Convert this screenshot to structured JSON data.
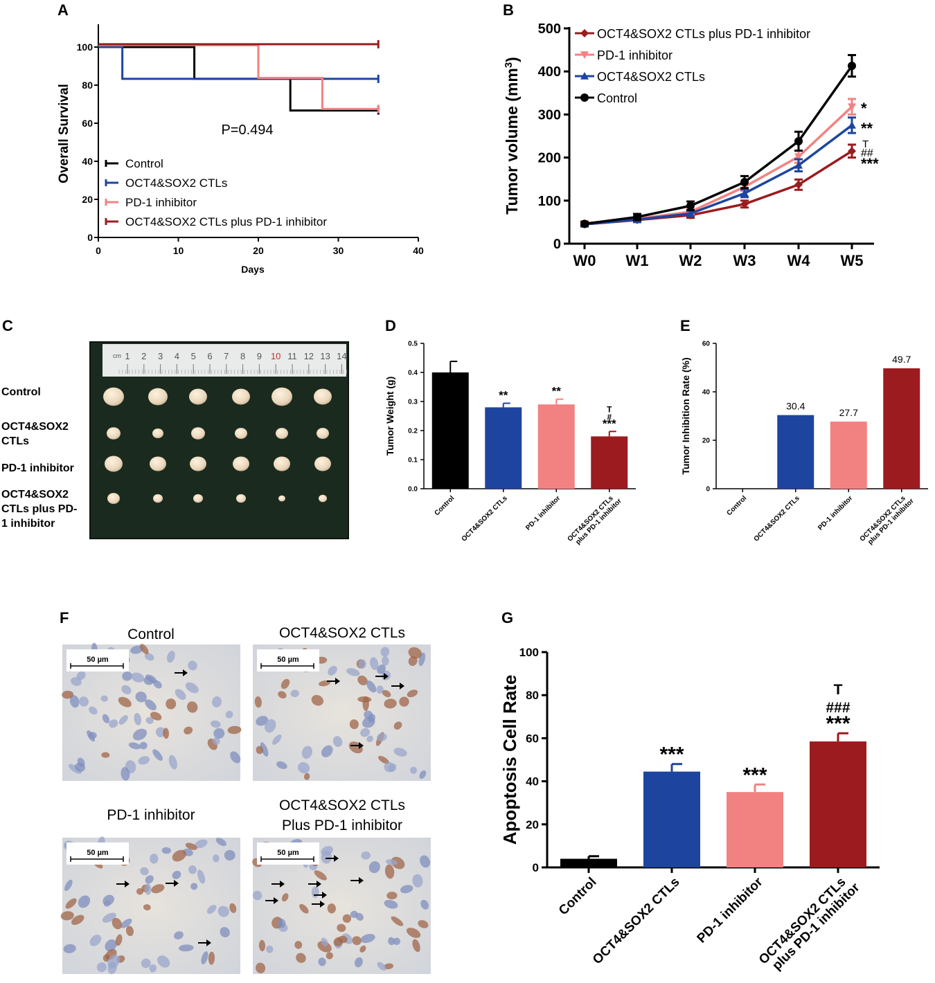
{
  "colors": {
    "control": "#000000",
    "oct": "#1d45a0",
    "pd1": "#f28282",
    "combo": "#9b1b1f"
  },
  "panel_labels": [
    "A",
    "B",
    "C",
    "D",
    "E",
    "F",
    "G"
  ],
  "chart_data": [
    {
      "id": "A",
      "type": "line",
      "subtype": "step",
      "title": "",
      "xlabel": "Days",
      "ylabel": "Overall Survival",
      "xlim": [
        0,
        40
      ],
      "ylim": [
        0,
        100
      ],
      "xticks": [
        0,
        10,
        20,
        30,
        40
      ],
      "yticks": [
        0,
        20,
        40,
        60,
        80,
        100
      ],
      "annotation": "P=0.494",
      "legend_position": "bottom-left",
      "series": [
        {
          "name": "Control",
          "color_key": "control",
          "x": [
            0,
            12,
            24,
            35
          ],
          "y": [
            100,
            83.3,
            66.7,
            66.7
          ]
        },
        {
          "name": "OCT4&SOX2 CTLs",
          "color_key": "oct",
          "x": [
            0,
            3,
            35
          ],
          "y": [
            100,
            83.3,
            83.3
          ]
        },
        {
          "name": "PD-1 inhibitor",
          "color_key": "pd1",
          "x": [
            0,
            20,
            28,
            35
          ],
          "y": [
            101,
            83.8,
            67.5,
            67.5
          ]
        },
        {
          "name": "OCT4&SOX2 CTLs plus PD-1 inhibitor",
          "color_key": "combo",
          "x": [
            0,
            35
          ],
          "y": [
            101.5,
            101.5
          ]
        }
      ]
    },
    {
      "id": "B",
      "type": "line",
      "title": "",
      "xlabel": "",
      "ylabel": "Tumor volume (mm",
      "ylabel_sup": "3",
      "ylabel_end": ")",
      "categories": [
        "W0",
        "W1",
        "W2",
        "W3",
        "W4",
        "W5"
      ],
      "ylim": [
        0,
        500
      ],
      "yticks": [
        0,
        100,
        200,
        300,
        400,
        500
      ],
      "legend_position": "top-left",
      "series": [
        {
          "name": "OCT4&SOX2 CTLs plus PD-1 inhibitor",
          "color_key": "combo",
          "marker": "diamond",
          "values": [
            45,
            55,
            66,
            92,
            137,
            215
          ],
          "errors": [
            4,
            5,
            6,
            8,
            12,
            15
          ]
        },
        {
          "name": "PD-1 inhibitor",
          "color_key": "pd1",
          "marker": "triangle-down",
          "values": [
            47,
            58,
            74,
            132,
            202,
            318
          ],
          "errors": [
            4,
            5,
            6,
            9,
            14,
            18
          ]
        },
        {
          "name": "OCT4&SOX2 CTLs",
          "color_key": "oct",
          "marker": "triangle-up",
          "values": [
            45,
            56,
            70,
            117,
            182,
            275
          ],
          "errors": [
            4,
            5,
            6,
            9,
            14,
            18
          ]
        },
        {
          "name": "Control",
          "color_key": "control",
          "marker": "circle",
          "values": [
            46,
            62,
            88,
            143,
            238,
            413
          ],
          "errors": [
            4,
            7,
            10,
            14,
            22,
            25
          ]
        }
      ],
      "sig_labels": [
        {
          "text": "*",
          "series": "PD-1 inhibitor"
        },
        {
          "text": "**",
          "series": "OCT4&SOX2 CTLs"
        },
        {
          "lines": [
            "T",
            "##",
            "***"
          ],
          "series": "OCT4&SOX2 CTLs plus PD-1 inhibitor"
        }
      ]
    },
    {
      "id": "D",
      "type": "bar",
      "title": "",
      "ylabel": "Tumor Weight (g)",
      "categories": [
        "Control",
        "OCT4&SOX2 CTLs",
        "PD-1 inhibitor",
        "OCT4&SOX2 CTLs plus PD-1 inhibitor"
      ],
      "category_lines": [
        [
          "Control"
        ],
        [
          "OCT4&SOX2 CTLs"
        ],
        [
          "PD-1 inhibitor"
        ],
        [
          "OCT4&SOX2 CTLs",
          "plus PD-1 inhibitor"
        ]
      ],
      "values": [
        0.4,
        0.28,
        0.29,
        0.18
      ],
      "errors": [
        0.038,
        0.014,
        0.018,
        0.017
      ],
      "color_keys": [
        "control",
        "oct",
        "pd1",
        "combo"
      ],
      "ylim": [
        0,
        0.5
      ],
      "yticks": [
        0.0,
        0.1,
        0.2,
        0.3,
        0.4,
        0.5
      ],
      "sig_labels": [
        [],
        [
          "**"
        ],
        [
          "**"
        ],
        [
          "T",
          "#",
          "***"
        ]
      ]
    },
    {
      "id": "E",
      "type": "bar",
      "title": "",
      "ylabel": "Tumor Inhibition Rate (%)",
      "categories": [
        "Control",
        "OCT4&SOX2 CTLs",
        "PD-1 inhibitor",
        "OCT4&SOX2 CTLs plus PD-1 inhibitor"
      ],
      "category_lines": [
        [
          "Control"
        ],
        [
          "OCT4&SOX2 CTLs"
        ],
        [
          "PD-1 inhibitor"
        ],
        [
          "OCT4&SOX2 CTLs",
          "plus PD-1 inhibitor"
        ]
      ],
      "values": [
        0,
        30.4,
        27.7,
        49.7
      ],
      "data_labels": [
        "",
        "30.4",
        "27.7",
        "49.7"
      ],
      "color_keys": [
        "control",
        "oct",
        "pd1",
        "combo"
      ],
      "ylim": [
        0,
        60
      ],
      "yticks": [
        0,
        20,
        40,
        60
      ]
    },
    {
      "id": "G",
      "type": "bar",
      "title": "",
      "ylabel": "Apoptosis Cell  Rate",
      "categories": [
        "Control",
        "OCT4&SOX2 CTLs",
        "PD-1 inhibitor",
        "OCT4&SOX2 CTLs plus PD-1 inhibitor"
      ],
      "category_lines": [
        [
          "Control"
        ],
        [
          "OCT4&SOX2 CTLs"
        ],
        [
          "PD-1 inhibitor"
        ],
        [
          "OCT4&SOX2 CTLs",
          "plus PD-1 inhibitor"
        ]
      ],
      "values": [
        4,
        44.5,
        35,
        58.5
      ],
      "errors": [
        1.2,
        3.5,
        3.5,
        3.8
      ],
      "color_keys": [
        "control",
        "oct",
        "pd1",
        "combo"
      ],
      "ylim": [
        0,
        100
      ],
      "yticks": [
        0,
        20,
        40,
        60,
        80,
        100
      ],
      "sig_labels": [
        [],
        [
          "***"
        ],
        [
          "***"
        ],
        [
          "T",
          "###",
          "***"
        ]
      ]
    }
  ],
  "photo_c": {
    "row_labels": [
      [
        "Control"
      ],
      [
        "OCT4&SOX2",
        "CTLs"
      ],
      [
        "PD-1 inhibitor"
      ],
      [
        "OCT4&SOX2",
        "CTLs plus PD-",
        "1 inhibitor"
      ]
    ],
    "ruler_unit": "cm",
    "ruler_numbers": [
      "1",
      "2",
      "3",
      "4",
      "5",
      "6",
      "7",
      "8",
      "9",
      "10",
      "11",
      "12",
      "13",
      "14"
    ]
  },
  "micro_f": {
    "panels": [
      {
        "title_lines": [
          "Control"
        ],
        "arrows": 1
      },
      {
        "title_lines": [
          "OCT4&SOX2 CTLs"
        ],
        "arrows": 4
      },
      {
        "title_lines": [
          "PD-1 inhibitor"
        ],
        "arrows": 3
      },
      {
        "title_lines": [
          "OCT4&SOX2 CTLs",
          "Plus PD-1 inhibitor"
        ],
        "arrows": 7
      }
    ],
    "scale_bar": "50 µm"
  }
}
